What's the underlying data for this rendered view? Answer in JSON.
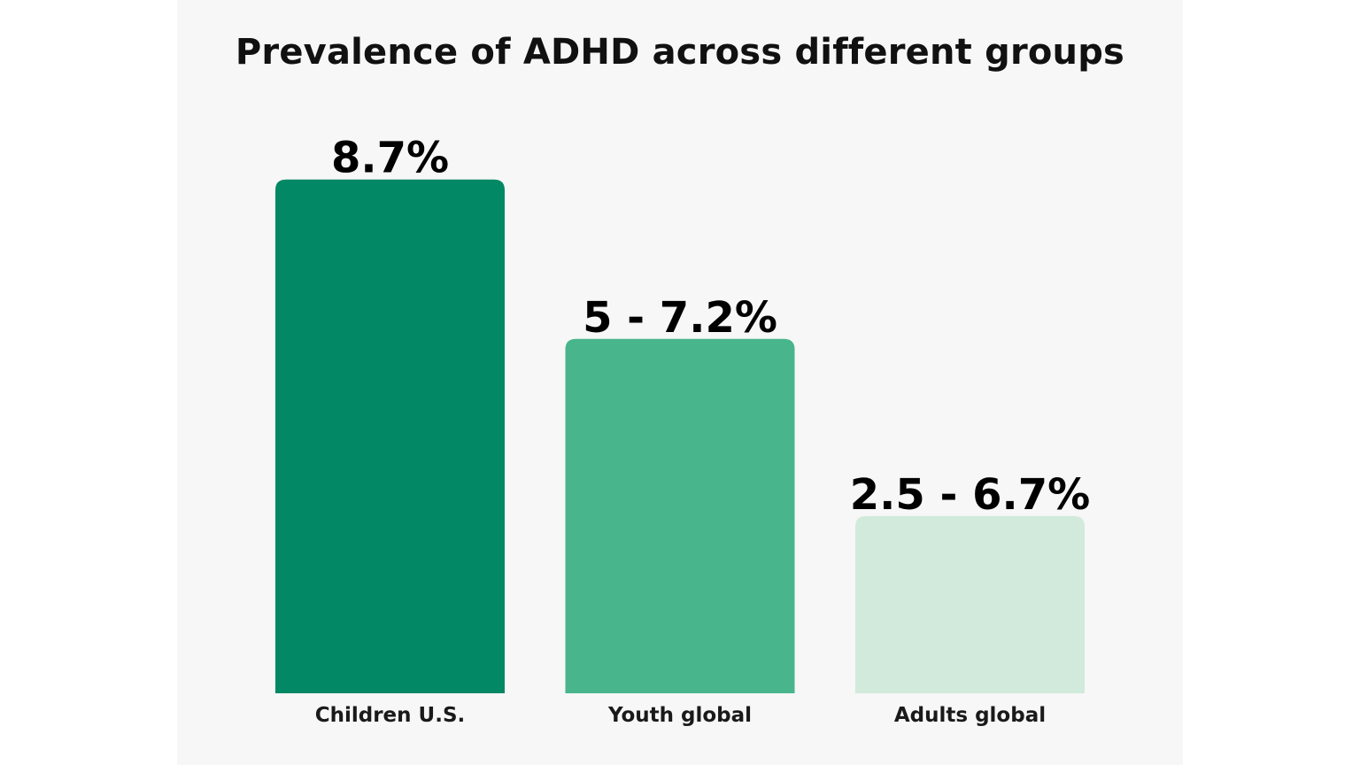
{
  "chart_data": {
    "type": "bar",
    "title": "Prevalence of ADHD across different groups",
    "xlabel": "",
    "ylabel": "",
    "ylim": [
      0,
      10
    ],
    "grid": false,
    "categories": [
      "Children U.S.",
      "Youth global",
      "Adults global"
    ],
    "values": [
      8.7,
      6.0,
      3.0
    ],
    "data_labels": [
      "8.7%",
      "5 - 7.2%",
      "2.5 - 6.7%"
    ],
    "colors": [
      "#028864",
      "#48b58d",
      "#d1eadb"
    ]
  }
}
